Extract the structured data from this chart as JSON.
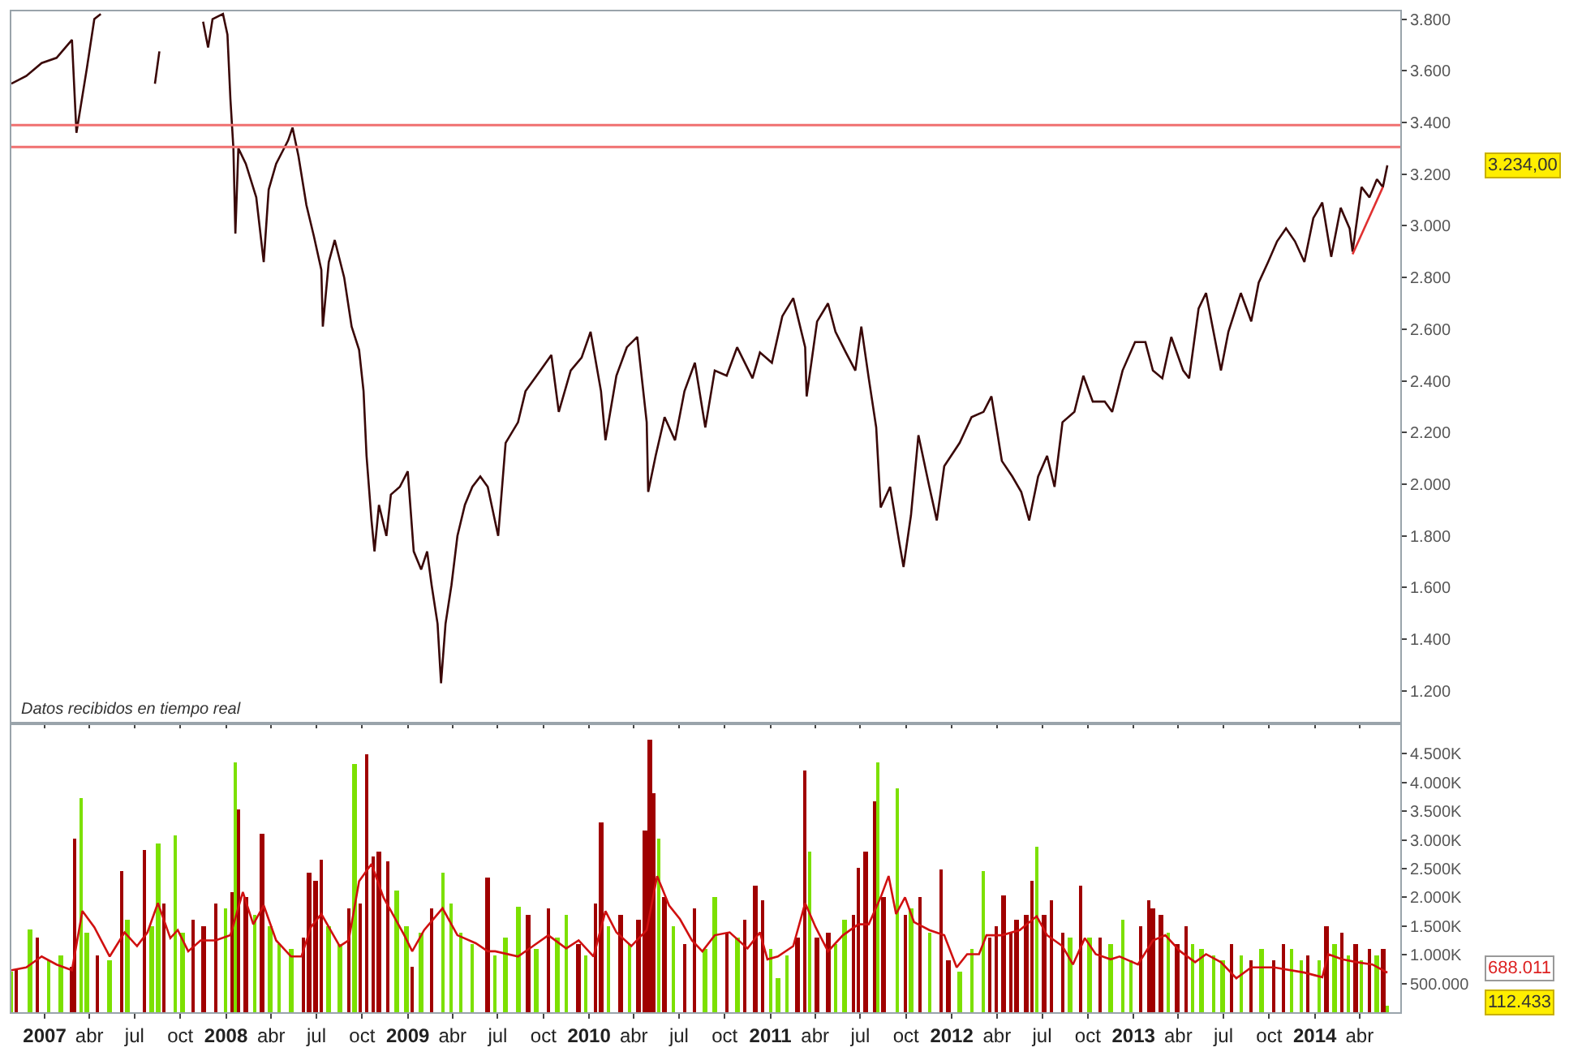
{
  "chart_data": [
    {
      "type": "line",
      "grid": false,
      "tick_labels": "y",
      "xlim": [
        "2006-10-26",
        "2014-06-22"
      ],
      "xticks": [
        {
          "value": "2007-01-01",
          "label": null
        },
        {
          "value": "2007-04-01",
          "label": null
        },
        {
          "value": "2007-07-01",
          "label": null
        },
        {
          "value": "2007-10-01",
          "label": null
        },
        {
          "value": "2008-01-01",
          "label": null
        },
        {
          "value": "2008-04-01",
          "label": null
        },
        {
          "value": "2008-07-01",
          "label": null
        },
        {
          "value": "2008-10-01",
          "label": null
        },
        {
          "value": "2009-01-01",
          "label": null
        },
        {
          "value": "2009-04-01",
          "label": null
        },
        {
          "value": "2009-07-01",
          "label": null
        },
        {
          "value": "2009-10-01",
          "label": null
        },
        {
          "value": "2010-01-01",
          "label": null
        },
        {
          "value": "2010-04-01",
          "label": null
        },
        {
          "value": "2010-07-01",
          "label": null
        },
        {
          "value": "2010-10-01",
          "label": null
        },
        {
          "value": "2011-01-01",
          "label": null
        },
        {
          "value": "2011-04-01",
          "label": null
        },
        {
          "value": "2011-07-01",
          "label": null
        },
        {
          "value": "2011-10-01",
          "label": null
        },
        {
          "value": "2012-01-01",
          "label": null
        },
        {
          "value": "2012-04-01",
          "label": null
        },
        {
          "value": "2012-07-01",
          "label": null
        },
        {
          "value": "2012-10-01",
          "label": null
        },
        {
          "value": "2013-01-01",
          "label": null
        },
        {
          "value": "2013-04-01",
          "label": null
        },
        {
          "value": "2013-07-01",
          "label": null
        },
        {
          "value": "2013-10-01",
          "label": null
        },
        {
          "value": "2014-01-01",
          "label": null
        },
        {
          "value": "2014-04-01",
          "label": null
        }
      ],
      "ylim": [
        1080,
        3830
      ],
      "yticks": [
        {
          "value": 1200,
          "label": "1.200"
        },
        {
          "value": 1400,
          "label": "1.400"
        },
        {
          "value": 1600,
          "label": "1.600"
        },
        {
          "value": 1800,
          "label": "1.800"
        },
        {
          "value": 2000,
          "label": "2.000"
        },
        {
          "value": 2200,
          "label": "2.200"
        },
        {
          "value": 2400,
          "label": "2.400"
        },
        {
          "value": 2600,
          "label": "2.600"
        },
        {
          "value": 2800,
          "label": "2.800"
        },
        {
          "value": 3000,
          "label": "3.000"
        },
        {
          "value": 3200,
          "label": "3.200"
        },
        {
          "value": 3400,
          "label": "3.400"
        },
        {
          "value": 3600,
          "label": "3.600"
        },
        {
          "value": 3800,
          "label": "3.800"
        }
      ],
      "ref_lines": [
        {
          "axis": "y",
          "value": 3390,
          "color": "#f07070"
        },
        {
          "axis": "y",
          "value": 3305,
          "color": "#f07070"
        }
      ],
      "series": [
        {
          "color": "#3a0808",
          "x": [
            "2006-10-26",
            "2006-11-25",
            "2006-12-26",
            "2007-01-25",
            "2007-02-25",
            "2007-03-06",
            "2007-03-27",
            "2007-04-11",
            "2007-04-24",
            "2007-06-11",
            "2007-08-11",
            "2007-08-20",
            "2007-09-11",
            "2007-11-16",
            "2007-11-26",
            "2007-12-05",
            "2007-12-26",
            "2008-01-04",
            "2008-01-10",
            "2008-01-16",
            "2008-01-20",
            "2008-01-26",
            "2008-02-10",
            "2008-03-02",
            "2008-03-17",
            "2008-03-27",
            "2008-04-11",
            "2008-05-05",
            "2008-05-14",
            "2008-05-26",
            "2008-06-11",
            "2008-06-26",
            "2008-07-11",
            "2008-07-14",
            "2008-07-26",
            "2008-08-07",
            "2008-08-26",
            "2008-09-10",
            "2008-09-25",
            "2008-10-04",
            "2008-10-10",
            "2008-10-20",
            "2008-10-26",
            "2008-11-04",
            "2008-11-19",
            "2008-11-28",
            "2008-12-16",
            "2009-01-01",
            "2009-01-13",
            "2009-01-28",
            "2009-02-09",
            "2009-02-18",
            "2009-03-02",
            "2009-03-09",
            "2009-03-18",
            "2009-03-30",
            "2009-04-11",
            "2009-04-26",
            "2009-05-11",
            "2009-05-27",
            "2009-06-11",
            "2009-07-02",
            "2009-07-17",
            "2009-08-11",
            "2009-08-26",
            "2009-09-25",
            "2009-10-17",
            "2009-11-01",
            "2009-11-25",
            "2009-12-17",
            "2010-01-04",
            "2010-01-25",
            "2010-02-03",
            "2010-02-25",
            "2010-03-18",
            "2010-04-08",
            "2010-04-27",
            "2010-04-30",
            "2010-05-15",
            "2010-06-02",
            "2010-06-23",
            "2010-07-12",
            "2010-08-02",
            "2010-08-23",
            "2010-09-11",
            "2010-10-05",
            "2010-10-26",
            "2010-11-26",
            "2010-12-11",
            "2011-01-04",
            "2011-01-25",
            "2011-02-16",
            "2011-03-12",
            "2011-03-15",
            "2011-04-05",
            "2011-04-27",
            "2011-05-12",
            "2011-06-02",
            "2011-06-21",
            "2011-07-03",
            "2011-07-18",
            "2011-08-02",
            "2011-08-11",
            "2011-08-30",
            "2011-09-17",
            "2011-09-26",
            "2011-10-11",
            "2011-10-26",
            "2011-11-17",
            "2011-12-02",
            "2011-12-17",
            "2012-01-17",
            "2012-02-10",
            "2012-03-05",
            "2012-03-21",
            "2012-04-11",
            "2012-05-02",
            "2012-05-20",
            "2012-06-05",
            "2012-06-23",
            "2012-07-11",
            "2012-07-26",
            "2012-08-11",
            "2012-09-04",
            "2012-09-22",
            "2012-10-11",
            "2012-11-04",
            "2012-11-19",
            "2012-12-10",
            "2013-01-04",
            "2013-01-25",
            "2013-02-09",
            "2013-02-28",
            "2013-03-18",
            "2013-04-11",
            "2013-04-23",
            "2013-05-12",
            "2013-05-27",
            "2013-06-11",
            "2013-06-26",
            "2013-07-11",
            "2013-08-05",
            "2013-08-26",
            "2013-09-10",
            "2013-09-29",
            "2013-10-17",
            "2013-11-04",
            "2013-11-22",
            "2013-12-11",
            "2013-12-29",
            "2014-01-16",
            "2014-02-03",
            "2014-02-22",
            "2014-03-12",
            "2014-03-18",
            "2014-04-05",
            "2014-04-21",
            "2014-05-06",
            "2014-05-18",
            "2014-05-27"
          ],
          "values": [
            3550,
            3580,
            3630,
            3650,
            3720,
            3360,
            3610,
            3800,
            3820,
            null,
            3550,
            3675,
            null,
            3790,
            3690,
            3800,
            3820,
            3740,
            3490,
            3300,
            2970,
            3300,
            3240,
            3110,
            2860,
            3140,
            3240,
            3330,
            3380,
            3270,
            3080,
            2960,
            2830,
            2610,
            2860,
            2945,
            2800,
            2610,
            2520,
            2360,
            2110,
            1860,
            1740,
            1920,
            1800,
            1960,
            1990,
            2050,
            1740,
            1670,
            1740,
            1610,
            1460,
            1230,
            1460,
            1610,
            1800,
            1920,
            1990,
            2030,
            1990,
            1800,
            2160,
            2240,
            2360,
            2440,
            2500,
            2280,
            2440,
            2490,
            2590,
            2360,
            2170,
            2420,
            2530,
            2570,
            2240,
            1970,
            2110,
            2260,
            2170,
            2360,
            2470,
            2220,
            2440,
            2420,
            2530,
            2410,
            2510,
            2470,
            2650,
            2720,
            2530,
            2340,
            2630,
            2700,
            2590,
            2510,
            2440,
            2610,
            2410,
            2220,
            1910,
            1990,
            1780,
            1680,
            1880,
            2190,
            1990,
            1860,
            2070,
            2160,
            2260,
            2280,
            2340,
            2090,
            2030,
            1970,
            1860,
            2030,
            2110,
            1990,
            2240,
            2280,
            2420,
            2320,
            2320,
            2280,
            2440,
            2550,
            2550,
            2440,
            2410,
            2570,
            2440,
            2410,
            2680,
            2740,
            2590,
            2440,
            2590,
            2740,
            2630,
            2780,
            2860,
            2940,
            2990,
            2940,
            2860,
            3030,
            3090,
            2880,
            3070,
            2990,
            2900,
            3150,
            3110,
            3180,
            3150,
            3234
          ]
        },
        {
          "color": "#e03030",
          "x": [
            "2014-03-18",
            "2014-05-18"
          ],
          "values": [
            2890,
            3150
          ]
        }
      ],
      "annotations": [
        "Datos recibidos en tiempo real",
        "3.234,00"
      ]
    },
    {
      "type": "bar",
      "grid": false,
      "xlim": [
        "2006-10-26",
        "2014-06-22"
      ],
      "xticks": [
        {
          "value": "2007-01-01",
          "label": "2007"
        },
        {
          "value": "2007-04-01",
          "label": "abr"
        },
        {
          "value": "2007-07-01",
          "label": "jul"
        },
        {
          "value": "2007-10-01",
          "label": "oct"
        },
        {
          "value": "2008-01-01",
          "label": "2008"
        },
        {
          "value": "2008-04-01",
          "label": "abr"
        },
        {
          "value": "2008-07-01",
          "label": "jul"
        },
        {
          "value": "2008-10-01",
          "label": "oct"
        },
        {
          "value": "2009-01-01",
          "label": "2009"
        },
        {
          "value": "2009-04-01",
          "label": "abr"
        },
        {
          "value": "2009-07-01",
          "label": "jul"
        },
        {
          "value": "2009-10-01",
          "label": "oct"
        },
        {
          "value": "2010-01-01",
          "label": "2010"
        },
        {
          "value": "2010-04-01",
          "label": "abr"
        },
        {
          "value": "2010-07-01",
          "label": "jul"
        },
        {
          "value": "2010-10-01",
          "label": "oct"
        },
        {
          "value": "2011-01-01",
          "label": "2011"
        },
        {
          "value": "2011-04-01",
          "label": "abr"
        },
        {
          "value": "2011-07-01",
          "label": "jul"
        },
        {
          "value": "2011-10-01",
          "label": "oct"
        },
        {
          "value": "2012-01-01",
          "label": "2012"
        },
        {
          "value": "2012-04-01",
          "label": "abr"
        },
        {
          "value": "2012-07-01",
          "label": "jul"
        },
        {
          "value": "2012-10-01",
          "label": "oct"
        },
        {
          "value": "2013-01-01",
          "label": "2013"
        },
        {
          "value": "2013-04-01",
          "label": "abr"
        },
        {
          "value": "2013-07-01",
          "label": "jul"
        },
        {
          "value": "2013-10-01",
          "label": "oct"
        },
        {
          "value": "2014-01-01",
          "label": "2014"
        },
        {
          "value": "2014-04-01",
          "label": "abr"
        }
      ],
      "ylim": [
        0,
        5000
      ],
      "yticks": [
        {
          "value": 500,
          "label": "500.000"
        },
        {
          "value": 1000,
          "label": "1.000K"
        },
        {
          "value": 1500,
          "label": "1.500K"
        },
        {
          "value": 2000,
          "label": "2.000K"
        },
        {
          "value": 2500,
          "label": "2.500K"
        },
        {
          "value": 3000,
          "label": "3.000K"
        },
        {
          "value": 3500,
          "label": "3.500K"
        },
        {
          "value": 4000,
          "label": "4.000K"
        },
        {
          "value": 4500,
          "label": "4.500K"
        }
      ],
      "series": [
        {
          "x": [
            "2006-10-26",
            "2006-11-04",
            "2006-12-02",
            "2006-12-17",
            "2007-01-10",
            "2007-02-03",
            "2007-02-25",
            "2007-03-03",
            "2007-03-15",
            "2007-03-27",
            "2007-04-18",
            "2007-05-12",
            "2007-06-05",
            "2007-06-17",
            "2007-07-21",
            "2007-08-05",
            "2007-08-17",
            "2007-08-29",
            "2007-09-20",
            "2007-10-05",
            "2007-10-26",
            "2007-11-17",
            "2007-12-11",
            "2008-01-01",
            "2008-01-13",
            "2008-01-20",
            "2008-01-26",
            "2008-02-10",
            "2008-02-28",
            "2008-03-14",
            "2008-03-30",
            "2008-04-17",
            "2008-05-11",
            "2008-06-05",
            "2008-06-17",
            "2008-06-29",
            "2008-07-11",
            "2008-07-26",
            "2008-08-17",
            "2008-09-04",
            "2008-09-16",
            "2008-09-28",
            "2008-10-10",
            "2008-10-23",
            "2008-11-04",
            "2008-11-22",
            "2008-12-10",
            "2008-12-29",
            "2009-01-10",
            "2009-01-28",
            "2009-02-18",
            "2009-03-12",
            "2009-03-30",
            "2009-04-17",
            "2009-05-11",
            "2009-06-11",
            "2009-06-26",
            "2009-07-17",
            "2009-08-11",
            "2009-09-01",
            "2009-09-16",
            "2009-10-11",
            "2009-10-29",
            "2009-11-16",
            "2009-12-11",
            "2009-12-26",
            "2010-01-13",
            "2010-01-25",
            "2010-02-09",
            "2010-03-06",
            "2010-03-24",
            "2010-04-11",
            "2010-04-23",
            "2010-05-03",
            "2010-05-12",
            "2010-05-21",
            "2010-06-02",
            "2010-06-20",
            "2010-07-12",
            "2010-08-02",
            "2010-08-23",
            "2010-09-11",
            "2010-10-05",
            "2010-10-26",
            "2010-11-10",
            "2010-12-02",
            "2010-12-17",
            "2011-01-01",
            "2011-01-16",
            "2011-02-04",
            "2011-02-25",
            "2011-03-12",
            "2011-03-21",
            "2011-04-05",
            "2011-04-27",
            "2011-05-12",
            "2011-05-30",
            "2011-06-18",
            "2011-06-27",
            "2011-07-12",
            "2011-07-30",
            "2011-08-05",
            "2011-08-17",
            "2011-09-14",
            "2011-09-29",
            "2011-10-11",
            "2011-10-29",
            "2011-11-17",
            "2011-12-11",
            "2011-12-26",
            "2012-01-17",
            "2012-02-10",
            "2012-03-05",
            "2012-03-18",
            "2012-03-30",
            "2012-04-14",
            "2012-04-29",
            "2012-05-11",
            "2012-05-30",
            "2012-06-11",
            "2012-06-20",
            "2012-07-05",
            "2012-07-20",
            "2012-08-11",
            "2012-08-26",
            "2012-09-16",
            "2012-10-04",
            "2012-10-26",
            "2012-11-16",
            "2012-12-10",
            "2012-12-26",
            "2013-01-16",
            "2013-01-31",
            "2013-02-09",
            "2013-02-25",
            "2013-03-12",
            "2013-03-30",
            "2013-04-17",
            "2013-04-29",
            "2013-05-18",
            "2013-06-11",
            "2013-06-29",
            "2013-07-18",
            "2013-08-05",
            "2013-08-26",
            "2013-09-16",
            "2013-10-11",
            "2013-10-29",
            "2013-11-16",
            "2013-12-05",
            "2013-12-17",
            "2014-01-10",
            "2014-01-25",
            "2014-02-09",
            "2014-02-25",
            "2014-03-09",
            "2014-03-24",
            "2014-04-05",
            "2014-04-21",
            "2014-05-06",
            "2014-05-18",
            "2014-05-27"
          ],
          "values": [
            700,
            750,
            1430,
            1300,
            900,
            1000,
            800,
            3030,
            3730,
            1400,
            1000,
            900,
            2460,
            1600,
            2840,
            1500,
            2930,
            1900,
            3090,
            1400,
            1600,
            1500,
            1900,
            1800,
            2100,
            4360,
            3540,
            2000,
            1700,
            3120,
            1500,
            1200,
            1100,
            1300,
            2420,
            2300,
            2670,
            1500,
            1200,
            1800,
            4320,
            1900,
            4500,
            2700,
            2790,
            2630,
            2110,
            1500,
            800,
            1400,
            1800,
            2440,
            1900,
            1400,
            1200,
            2350,
            1000,
            1300,
            1850,
            1700,
            1100,
            1800,
            1300,
            1700,
            1200,
            1000,
            1900,
            3300,
            1500,
            1700,
            1200,
            1600,
            3170,
            4760,
            3820,
            3030,
            2000,
            1500,
            1200,
            1800,
            1100,
            2000,
            1400,
            1300,
            1620,
            2200,
            1950,
            1100,
            600,
            1000,
            1300,
            4220,
            2800,
            1300,
            1400,
            1200,
            1600,
            1700,
            2510,
            2790,
            3680,
            4360,
            2000,
            3890,
            1700,
            1800,
            2000,
            1400,
            2480,
            900,
            700,
            1100,
            2460,
            1300,
            1500,
            2040,
            1400,
            1600,
            1700,
            2280,
            2890,
            1700,
            1950,
            1400,
            1300,
            2200,
            1300,
            1300,
            1200,
            1620,
            900,
            1500,
            1950,
            1800,
            1700,
            1400,
            1200,
            1500,
            1200,
            1100,
            1000,
            900,
            1200,
            1000,
            900,
            1100,
            900,
            1200,
            1100,
            900,
            1000,
            900,
            1500,
            1200,
            1400,
            1000,
            1200,
            900,
            1100,
            1000,
            1100,
            112.433
          ],
          "colors": [
            "#7ce000",
            "#a00000",
            "#7ce000",
            "#a00000",
            "#7ce000",
            "#7ce000",
            "#a00000",
            "#a00000",
            "#7ce000",
            "#7ce000",
            "#a00000",
            "#7ce000",
            "#a00000",
            "#7ce000",
            "#a00000",
            "#7ce000",
            "#7ce000",
            "#a00000",
            "#7ce000",
            "#7ce000",
            "#a00000",
            "#a00000",
            "#a00000",
            "#7ce000",
            "#a00000",
            "#7ce000",
            "#a00000",
            "#a00000",
            "#7ce000",
            "#a00000",
            "#7ce000",
            "#7ce000",
            "#7ce000",
            "#a00000",
            "#a00000",
            "#a00000",
            "#a00000",
            "#7ce000",
            "#7ce000",
            "#a00000",
            "#7ce000",
            "#a00000",
            "#a00000",
            "#a00000",
            "#a00000",
            "#a00000",
            "#7ce000",
            "#7ce000",
            "#a00000",
            "#7ce000",
            "#a00000",
            "#7ce000",
            "#7ce000",
            "#7ce000",
            "#7ce000",
            "#a00000",
            "#7ce000",
            "#7ce000",
            "#7ce000",
            "#a00000",
            "#7ce000",
            "#a00000",
            "#7ce000",
            "#7ce000",
            "#a00000",
            "#7ce000",
            "#a00000",
            "#a00000",
            "#7ce000",
            "#a00000",
            "#7ce000",
            "#a00000",
            "#a00000",
            "#a00000",
            "#a00000",
            "#7ce000",
            "#a00000",
            "#7ce000",
            "#a00000",
            "#a00000",
            "#7ce000",
            "#7ce000",
            "#a00000",
            "#7ce000",
            "#a00000",
            "#a00000",
            "#a00000",
            "#7ce000",
            "#7ce000",
            "#7ce000",
            "#a00000",
            "#a00000",
            "#7ce000",
            "#a00000",
            "#a00000",
            "#7ce000",
            "#7ce000",
            "#a00000",
            "#a00000",
            "#a00000",
            "#a00000",
            "#7ce000",
            "#a00000",
            "#7ce000",
            "#a00000",
            "#7ce000",
            "#a00000",
            "#7ce000",
            "#a00000",
            "#a00000",
            "#7ce000",
            "#7ce000",
            "#7ce000",
            "#a00000",
            "#a00000",
            "#a00000",
            "#a00000",
            "#a00000",
            "#a00000",
            "#a00000",
            "#7ce000",
            "#a00000",
            "#a00000",
            "#a00000",
            "#7ce000",
            "#a00000",
            "#7ce000",
            "#a00000",
            "#7ce000",
            "#7ce000",
            "#7ce000",
            "#a00000",
            "#a00000",
            "#a00000",
            "#a00000",
            "#7ce000",
            "#a00000",
            "#a00000",
            "#7ce000",
            "#7ce000",
            "#7ce000",
            "#7ce000",
            "#a00000",
            "#7ce000",
            "#a00000",
            "#7ce000",
            "#a00000",
            "#a00000",
            "#7ce000",
            "#7ce000",
            "#a00000",
            "#7ce000",
            "#a00000",
            "#7ce000",
            "#a00000",
            "#7ce000",
            "#a00000",
            "#7ce000",
            "#a00000",
            "#7ce000",
            "#a00000",
            "#7ce000"
          ]
        },
        {
          "type": "line",
          "color": "#d01010",
          "x": [
            "2006-10-26",
            "2006-11-25",
            "2006-12-26",
            "2007-01-25",
            "2007-02-25",
            "2007-03-18",
            "2007-04-11",
            "2007-05-12",
            "2007-06-11",
            "2007-07-06",
            "2007-07-27",
            "2007-08-17",
            "2007-09-11",
            "2007-09-26",
            "2007-10-17",
            "2007-11-11",
            "2007-12-11",
            "2008-01-10",
            "2008-02-04",
            "2008-02-25",
            "2008-03-17",
            "2008-04-11",
            "2008-05-11",
            "2008-06-01",
            "2008-06-20",
            "2008-07-11",
            "2008-08-17",
            "2008-09-04",
            "2008-09-25",
            "2008-10-20",
            "2008-11-13",
            "2008-12-04",
            "2008-12-25",
            "2009-01-10",
            "2009-02-03",
            "2009-03-12",
            "2009-04-11",
            "2009-05-18",
            "2009-06-11",
            "2009-06-26",
            "2009-08-11",
            "2009-09-10",
            "2009-10-11",
            "2009-11-16",
            "2009-12-11",
            "2010-01-10",
            "2010-02-03",
            "2010-02-25",
            "2010-03-27",
            "2010-04-27",
            "2010-05-18",
            "2010-06-11",
            "2010-07-03",
            "2010-07-27",
            "2010-08-17",
            "2010-09-11",
            "2010-10-11",
            "2010-11-16",
            "2010-12-11",
            "2010-12-26",
            "2011-01-16",
            "2011-02-16",
            "2011-03-12",
            "2011-04-02",
            "2011-04-27",
            "2011-05-27",
            "2011-06-27",
            "2011-07-18",
            "2011-08-11",
            "2011-08-27",
            "2011-09-11",
            "2011-09-29",
            "2011-10-17",
            "2011-11-17",
            "2011-12-17",
            "2012-01-11",
            "2012-02-01",
            "2012-02-25",
            "2012-03-11",
            "2012-04-11",
            "2012-05-17",
            "2012-06-20",
            "2012-07-11",
            "2012-08-11",
            "2012-09-01",
            "2012-09-25",
            "2012-10-17",
            "2012-11-16",
            "2012-12-04",
            "2013-01-10",
            "2013-02-09",
            "2013-03-06",
            "2013-04-05",
            "2013-05-05",
            "2013-05-27",
            "2013-06-26",
            "2013-07-27",
            "2013-08-26",
            "2013-10-11",
            "2013-12-11",
            "2014-01-16",
            "2014-01-28",
            "2014-02-25",
            "2014-03-27",
            "2014-04-27",
            "2014-05-27"
          ],
          "values": [
            730,
            780,
            970,
            830,
            730,
            1760,
            1480,
            970,
            1390,
            1150,
            1390,
            1900,
            1290,
            1430,
            1060,
            1250,
            1250,
            1340,
            2090,
            1530,
            1860,
            1250,
            970,
            970,
            1480,
            1710,
            1150,
            1250,
            2280,
            2580,
            2000,
            1670,
            1340,
            1060,
            1430,
            1810,
            1340,
            1200,
            1060,
            1060,
            970,
            1150,
            1340,
            1110,
            1250,
            970,
            1760,
            1390,
            1150,
            1430,
            2370,
            1860,
            1620,
            1250,
            1060,
            1340,
            1390,
            1110,
            1390,
            920,
            970,
            1150,
            1900,
            1480,
            1060,
            1340,
            1530,
            1530,
            2000,
            2370,
            1710,
            2000,
            1570,
            1430,
            1340,
            780,
            1010,
            1010,
            1340,
            1340,
            1430,
            1670,
            1340,
            1150,
            830,
            1290,
            1010,
            920,
            970,
            830,
            1250,
            1340,
            1060,
            870,
            1010,
            870,
            590,
            780,
            780,
            690,
            610,
            1010,
            920,
            870,
            830,
            688.011
          ]
        }
      ],
      "annotations": [
        "688.011",
        "112.433"
      ]
    }
  ]
}
